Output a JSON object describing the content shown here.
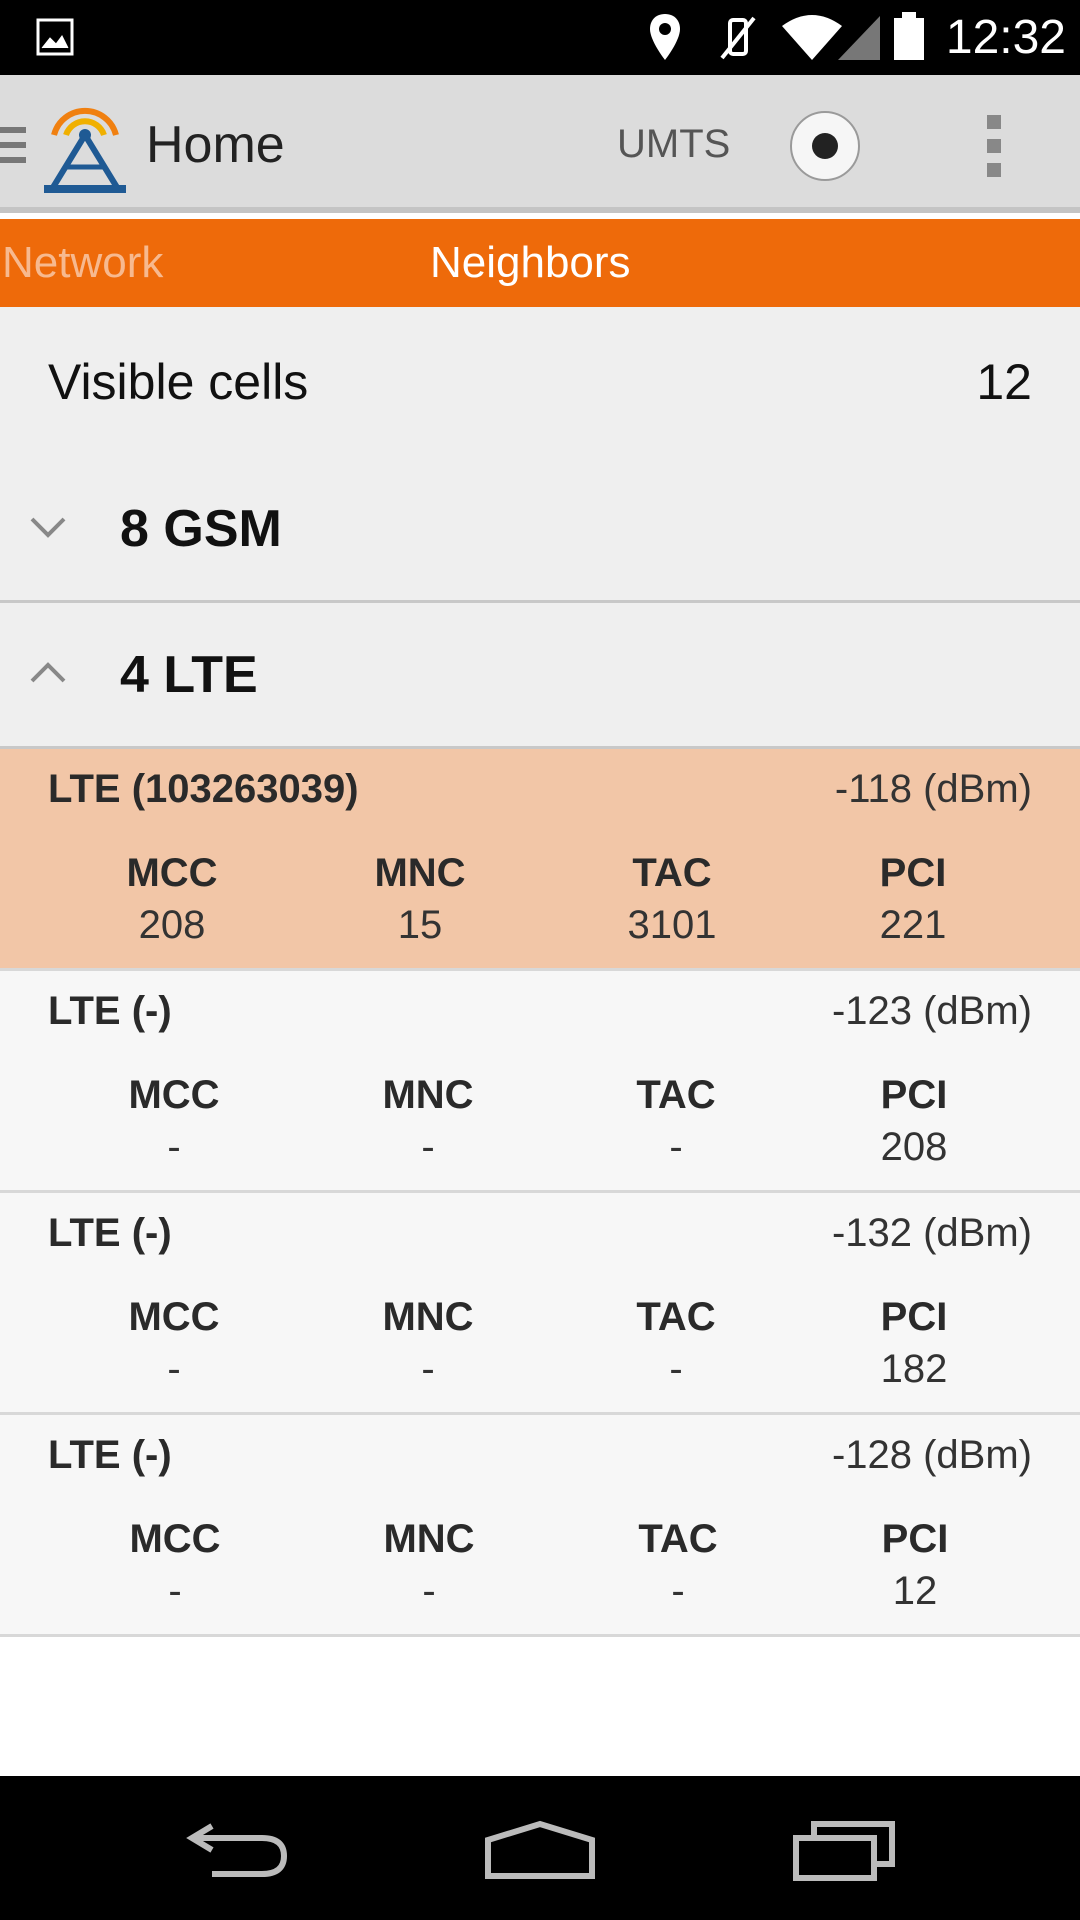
{
  "status_bar": {
    "time": "12:32"
  },
  "action_bar": {
    "title": "Home",
    "mode": "UMTS"
  },
  "tabs": [
    {
      "label": "Network"
    },
    {
      "label": "Neighbors"
    }
  ],
  "summary": {
    "label": "Visible cells",
    "count": "12"
  },
  "groups": [
    {
      "title": "8 GSM"
    },
    {
      "title": "4 LTE"
    }
  ],
  "headers": {
    "mcc": "MCC",
    "mnc": "MNC",
    "tac": "TAC",
    "pci": "PCI"
  },
  "cells": [
    {
      "title": "LTE (103263039)",
      "dbm": "-118 (dBm)",
      "mcc": "208",
      "mnc": "15",
      "tac": "3101",
      "pci": "221"
    },
    {
      "title": "LTE (-)",
      "dbm": "-123 (dBm)",
      "mcc": "-",
      "mnc": "-",
      "tac": "-",
      "pci": "208"
    },
    {
      "title": "LTE (-)",
      "dbm": "-132 (dBm)",
      "mcc": "-",
      "mnc": "-",
      "tac": "-",
      "pci": "182"
    },
    {
      "title": "LTE (-)",
      "dbm": "-128 (dBm)",
      "mcc": "-",
      "mnc": "-",
      "tac": "-",
      "pci": "12"
    }
  ]
}
